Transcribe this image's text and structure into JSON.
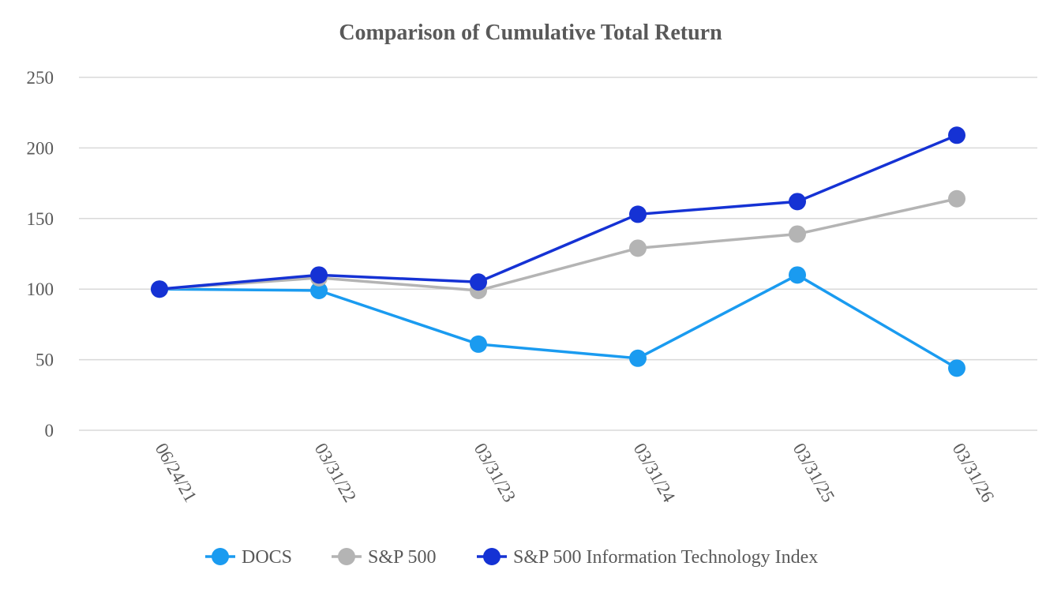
{
  "chart_data": {
    "type": "line",
    "title": "Comparison of Cumulative Total Return",
    "xlabel": "",
    "ylabel": "",
    "categories": [
      "06/24/21",
      "03/31/22",
      "03/31/23",
      "03/31/24",
      "03/31/25",
      "03/31/26"
    ],
    "ylim": [
      0,
      250
    ],
    "yticks": [
      0,
      50,
      100,
      150,
      200,
      250
    ],
    "grid": true,
    "legend_position": "bottom",
    "series": [
      {
        "name": "DOCS",
        "color": "#1a9bf0",
        "values": [
          100,
          99,
          61,
          51,
          110,
          44
        ]
      },
      {
        "name": "S&P 500",
        "color": "#b4b4b4",
        "values": [
          100,
          108,
          99,
          129,
          139,
          164
        ]
      },
      {
        "name": "S&P 500 Information Technology Index",
        "color": "#1532d4",
        "values": [
          100,
          110,
          105,
          153,
          162,
          209
        ]
      }
    ]
  }
}
